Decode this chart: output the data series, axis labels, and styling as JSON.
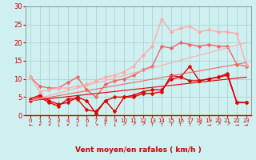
{
  "bg_color": "#cff0f0",
  "grid_color": "#aacccc",
  "xlabel": "Vent moyen/en rafales ( km/h )",
  "xlim": [
    -0.5,
    23.5
  ],
  "ylim": [
    0,
    30
  ],
  "yticks": [
    0,
    5,
    10,
    15,
    20,
    25,
    30
  ],
  "xticks": [
    0,
    1,
    2,
    3,
    4,
    5,
    6,
    7,
    8,
    9,
    10,
    11,
    12,
    13,
    14,
    15,
    16,
    17,
    18,
    19,
    20,
    21,
    22,
    23
  ],
  "lines": [
    {
      "note": "dark red line 1 - lower jagged",
      "x": [
        0,
        1,
        2,
        3,
        4,
        5,
        6,
        7,
        8,
        9,
        10,
        11,
        12,
        13,
        14,
        15,
        16,
        17,
        18,
        19,
        20,
        21,
        22,
        23
      ],
      "y": [
        4.5,
        5.5,
        4.0,
        3.0,
        3.5,
        5.0,
        4.0,
        0.5,
        4.0,
        1.0,
        5.0,
        5.0,
        6.0,
        6.0,
        6.5,
        11.0,
        10.5,
        13.5,
        9.5,
        10.0,
        10.5,
        11.5,
        3.5,
        3.5
      ],
      "color": "#dd0000",
      "lw": 1.0,
      "marker": "D",
      "ms": 2.5
    },
    {
      "note": "dark red line 2 - similar to line1",
      "x": [
        0,
        1,
        2,
        3,
        4,
        5,
        6,
        7,
        8,
        9,
        10,
        11,
        12,
        13,
        14,
        15,
        16,
        17,
        18,
        19,
        20,
        21,
        22,
        23
      ],
      "y": [
        4.0,
        5.0,
        3.5,
        2.5,
        4.5,
        4.5,
        1.5,
        1.0,
        4.0,
        5.0,
        5.0,
        5.5,
        6.5,
        7.0,
        7.0,
        10.0,
        10.5,
        9.5,
        9.5,
        10.0,
        10.5,
        11.0,
        3.5,
        3.5
      ],
      "color": "#dd0000",
      "lw": 1.0,
      "marker": "D",
      "ms": 2.5
    },
    {
      "note": "medium pink - middle range",
      "x": [
        0,
        1,
        2,
        3,
        4,
        5,
        6,
        7,
        8,
        9,
        10,
        11,
        12,
        13,
        14,
        15,
        16,
        17,
        18,
        19,
        20,
        21,
        22,
        23
      ],
      "y": [
        10.5,
        8.0,
        7.5,
        7.5,
        9.0,
        10.5,
        7.0,
        5.0,
        8.5,
        9.5,
        10.0,
        11.0,
        12.5,
        13.5,
        19.0,
        18.5,
        20.0,
        19.5,
        19.0,
        19.5,
        19.0,
        19.0,
        14.0,
        13.5
      ],
      "color": "#ee6666",
      "lw": 1.0,
      "marker": "D",
      "ms": 2.5
    },
    {
      "note": "light pink - highest peaks",
      "x": [
        0,
        1,
        2,
        3,
        4,
        5,
        6,
        7,
        8,
        9,
        10,
        11,
        12,
        13,
        14,
        15,
        16,
        17,
        18,
        19,
        20,
        21,
        22,
        23
      ],
      "y": [
        10.5,
        6.5,
        7.0,
        7.5,
        7.5,
        8.0,
        8.5,
        9.5,
        10.5,
        11.0,
        12.0,
        13.5,
        16.5,
        19.0,
        26.5,
        23.0,
        24.0,
        24.5,
        23.0,
        23.5,
        23.0,
        23.0,
        22.5,
        14.0
      ],
      "color": "#ffaaaa",
      "lw": 1.0,
      "marker": "D",
      "ms": 2.5
    },
    {
      "note": "trend line dark red",
      "x": [
        0,
        23
      ],
      "y": [
        4.0,
        10.5
      ],
      "color": "#dd0000",
      "lw": 0.8,
      "marker": null,
      "ms": 0
    },
    {
      "note": "trend line medium pink",
      "x": [
        0,
        23
      ],
      "y": [
        4.0,
        14.5
      ],
      "color": "#ee6666",
      "lw": 0.8,
      "marker": null,
      "ms": 0
    },
    {
      "note": "trend line light pink",
      "x": [
        0,
        23
      ],
      "y": [
        4.0,
        20.0
      ],
      "color": "#ffaaaa",
      "lw": 0.8,
      "marker": null,
      "ms": 0
    }
  ],
  "arrows": [
    "←",
    "↙",
    "↙",
    "↓",
    "↙",
    "↓",
    "↓",
    "↘",
    "↑",
    "↓",
    "↗",
    "↗",
    "↗",
    "↑",
    "↑",
    "↑",
    "↑",
    "↑",
    "↗",
    "→",
    "↗",
    "↗",
    "→",
    "→"
  ]
}
